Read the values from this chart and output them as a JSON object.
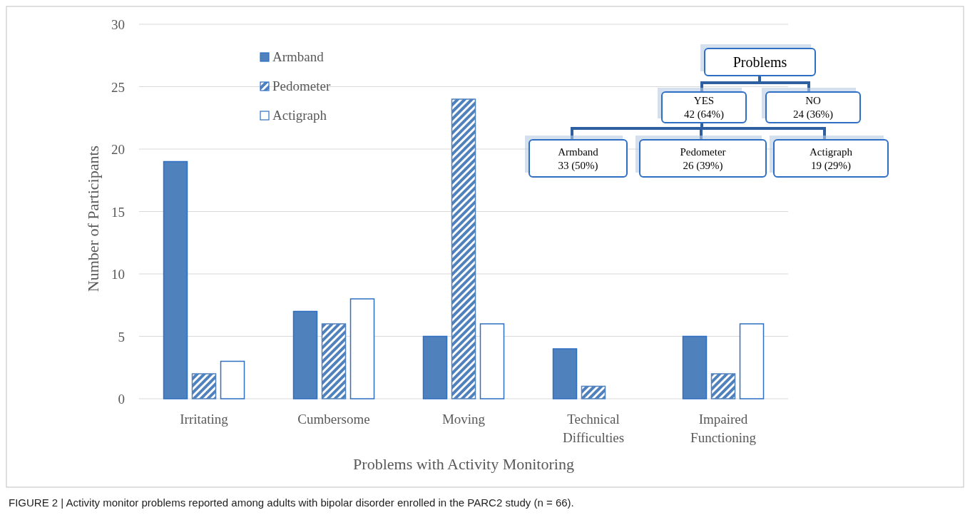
{
  "chart_data": {
    "type": "bar",
    "xlabel": "Problems with Activity Monitoring",
    "ylabel": "Number of Participants",
    "categories": [
      "Irritating",
      "Cumbersome",
      "Moving",
      "Technical Difficulties",
      "Impaired Functioning"
    ],
    "series": [
      {
        "name": "Armband",
        "color": "#4f81bd",
        "values": [
          19,
          7,
          5,
          4,
          5
        ]
      },
      {
        "name": "Pedometer",
        "color": "#4f81bd",
        "values": [
          2,
          6,
          24,
          1,
          2
        ]
      },
      {
        "name": "Actigraph",
        "color": "#ffffff",
        "values": [
          3,
          8,
          6,
          null,
          6
        ]
      }
    ],
    "ylim": [
      0,
      30
    ],
    "yticks": [
      0,
      5,
      10,
      15,
      20,
      25,
      30
    ],
    "grid": "y",
    "legend": "top left",
    "annotations": [
      "FIGURE 2 | Activity monitor problems reported among adults with bipolar disorder enrolled in the PARC2 study (n = 66).",
      "Problems",
      "YES\n42 (64%)",
      "NO\n24 (36%)",
      "Armband\n33 (50%)",
      "Pedometer\n26 (39%)",
      "Actigraph\n19 (29%)"
    ]
  }
}
